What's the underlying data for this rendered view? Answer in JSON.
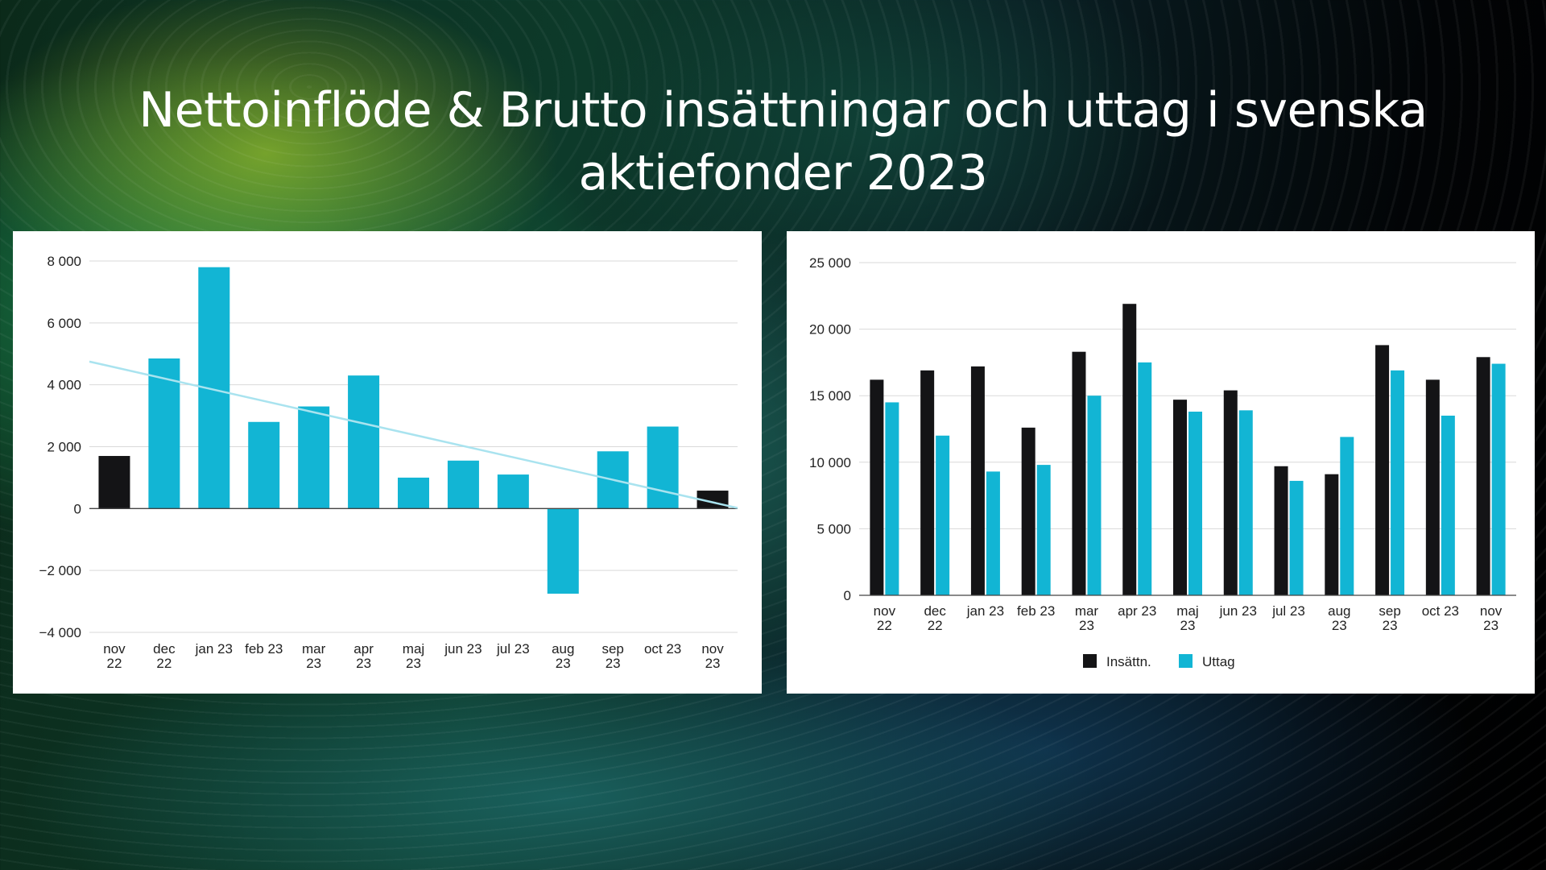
{
  "title": {
    "line1": "Nettoinflöde & Brutto insättningar och uttag i svenska",
    "line2": "aktiefonder 2023"
  },
  "colors": {
    "accent": "#12b5d4",
    "dark": "#141416",
    "trend": "#a9e3ef",
    "grid": "#d9d9d9"
  },
  "chart_data": [
    {
      "type": "bar",
      "categories": [
        [
          "nov",
          "22"
        ],
        [
          "dec",
          "22"
        ],
        [
          "jan 23"
        ],
        [
          "feb 23"
        ],
        [
          "mar",
          "23"
        ],
        [
          "apr",
          "23"
        ],
        [
          "maj",
          "23"
        ],
        [
          "jun 23"
        ],
        [
          "jul 23"
        ],
        [
          "aug",
          "23"
        ],
        [
          "sep",
          "23"
        ],
        [
          "oct 23"
        ],
        [
          "nov",
          "23"
        ]
      ],
      "values": [
        1700,
        4850,
        7800,
        2800,
        3300,
        4300,
        1000,
        1550,
        1100,
        -2750,
        1850,
        2650,
        580
      ],
      "bar_colors": [
        "dark",
        "accent",
        "accent",
        "accent",
        "accent",
        "accent",
        "accent",
        "accent",
        "accent",
        "accent",
        "accent",
        "accent",
        "dark"
      ],
      "ylim": [
        -4000,
        8000
      ],
      "yticks": [
        8000,
        6000,
        4000,
        2000,
        0,
        -2000,
        -4000
      ],
      "ytick_labels": [
        "8 000",
        "6 000",
        "4 000",
        "2 000",
        "0",
        "−2 000",
        "−4 000"
      ],
      "trendline": {
        "start": 4750,
        "end": 20
      },
      "grid": true
    },
    {
      "type": "bar",
      "categories": [
        [
          "nov",
          "22"
        ],
        [
          "dec",
          "22"
        ],
        [
          "jan 23"
        ],
        [
          "feb 23"
        ],
        [
          "mar",
          "23"
        ],
        [
          "apr 23"
        ],
        [
          "maj",
          "23"
        ],
        [
          "jun 23"
        ],
        [
          "jul 23"
        ],
        [
          "aug",
          "23"
        ],
        [
          "sep",
          "23"
        ],
        [
          "oct 23"
        ],
        [
          "nov",
          "23"
        ]
      ],
      "series": [
        {
          "name": "Insättn.",
          "color": "dark",
          "values": [
            16200,
            16900,
            17200,
            12600,
            18300,
            21900,
            14700,
            15400,
            9700,
            9100,
            18800,
            16200,
            17900
          ]
        },
        {
          "name": "Uttag",
          "color": "accent",
          "values": [
            14500,
            12000,
            9300,
            9800,
            15000,
            17500,
            13800,
            13900,
            8600,
            11900,
            16900,
            13500,
            17400
          ]
        }
      ],
      "ylim": [
        0,
        25000
      ],
      "yticks": [
        25000,
        20000,
        15000,
        10000,
        5000,
        0
      ],
      "ytick_labels": [
        "25 000",
        "20 000",
        "15 000",
        "10 000",
        "5 000",
        "0"
      ],
      "legend": "bottom",
      "grid": true
    }
  ]
}
